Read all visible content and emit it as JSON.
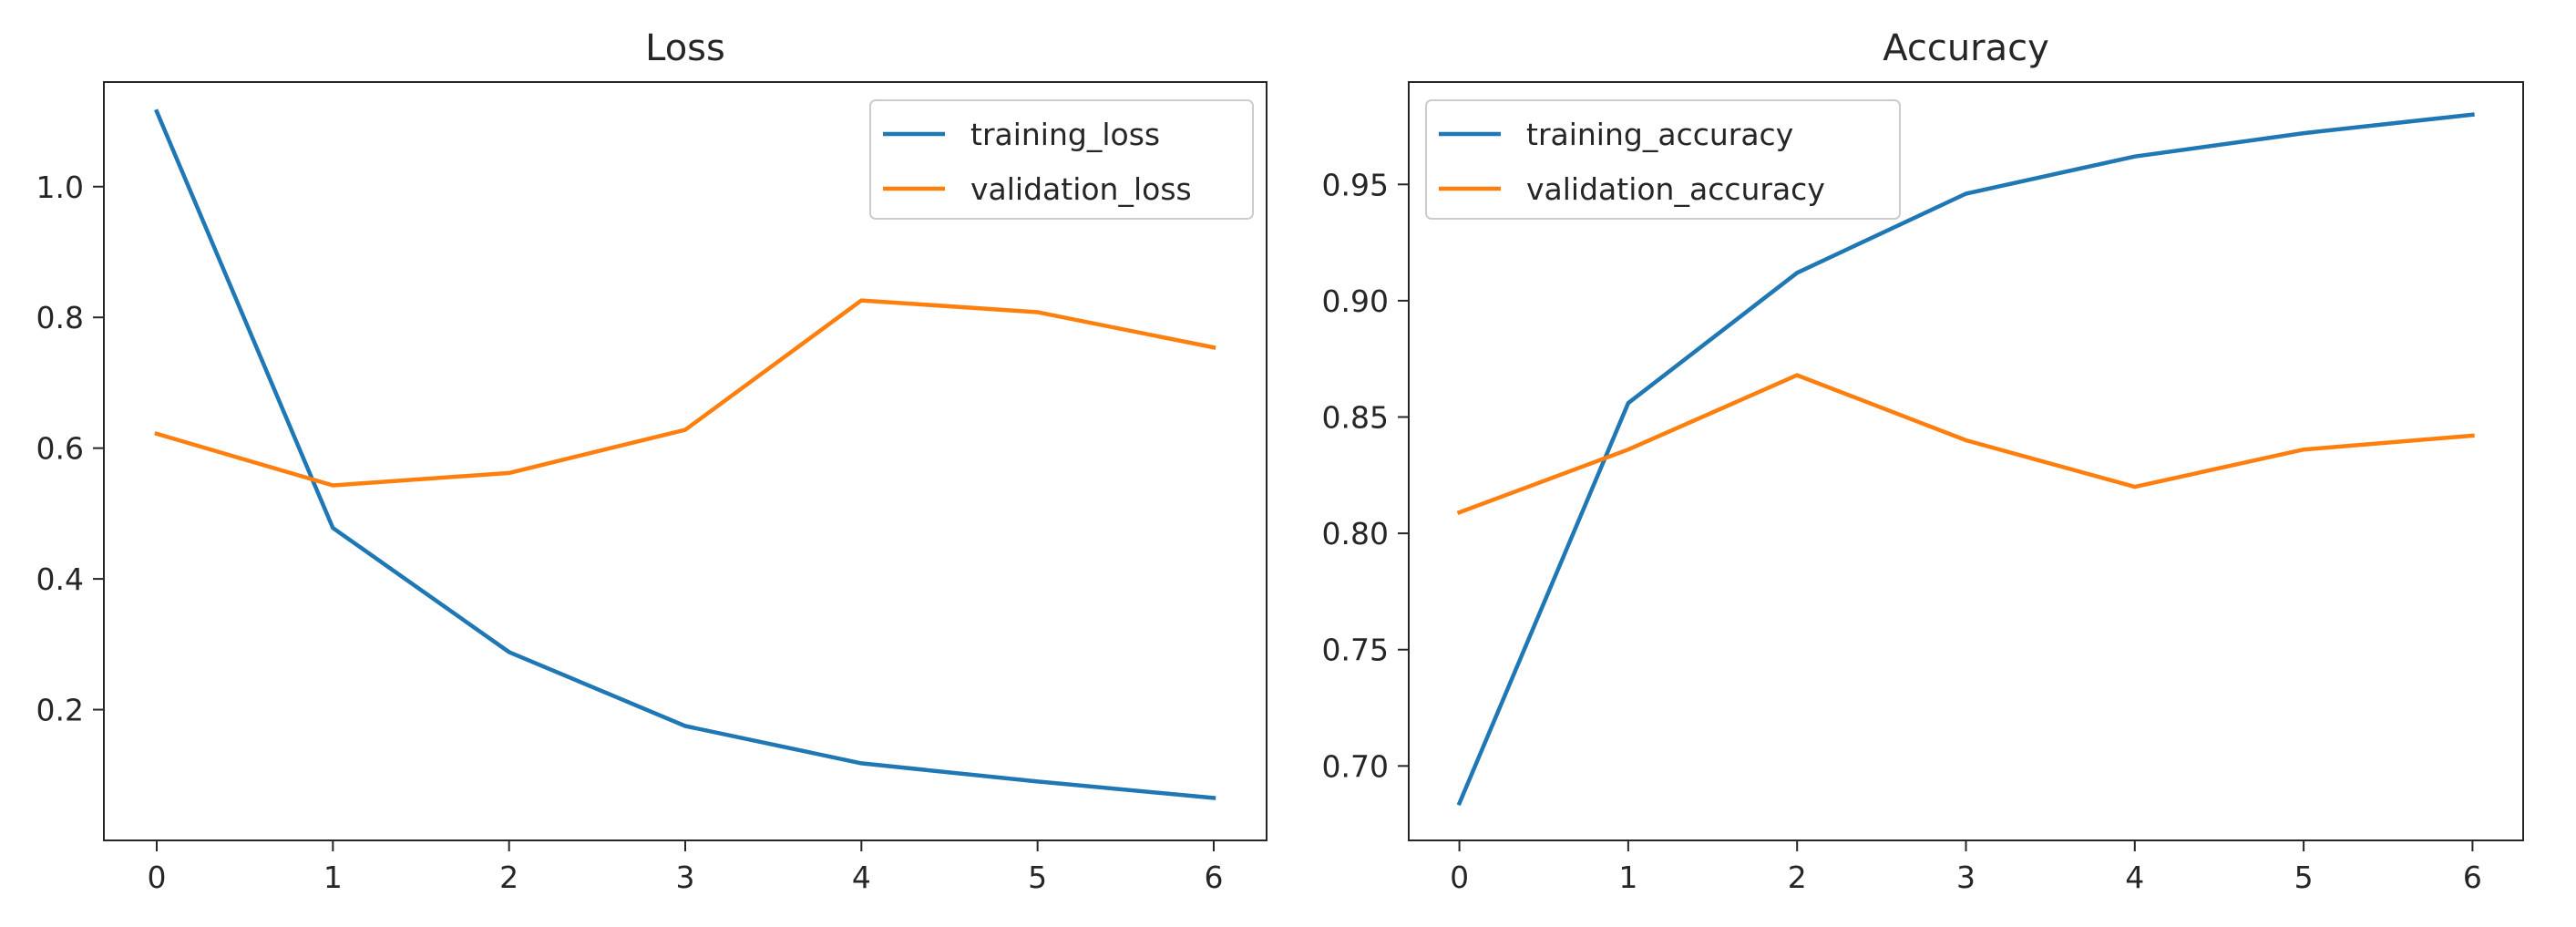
{
  "chart_data": [
    {
      "type": "line",
      "title": "Loss",
      "xlabel": "",
      "ylabel": "",
      "x": [
        0,
        1,
        2,
        3,
        4,
        5,
        6
      ],
      "xlim": [
        -0.3,
        6.3
      ],
      "ylim": [
        0.0,
        1.16
      ],
      "xticks": [
        0,
        1,
        2,
        3,
        4,
        5,
        6
      ],
      "yticks": [
        0.2,
        0.4,
        0.6,
        0.8,
        1.0
      ],
      "ytick_labels": [
        "0.2",
        "0.4",
        "0.6",
        "0.8",
        "1.0"
      ],
      "legend_position": "top-right",
      "grid": false,
      "series": [
        {
          "name": "training_loss",
          "color": "#1f77b4",
          "values": [
            1.115,
            0.478,
            0.288,
            0.175,
            0.118,
            0.09,
            0.065
          ]
        },
        {
          "name": "validation_loss",
          "color": "#ff7f0e",
          "values": [
            0.622,
            0.543,
            0.562,
            0.628,
            0.826,
            0.808,
            0.754
          ]
        }
      ]
    },
    {
      "type": "line",
      "title": "Accuracy",
      "xlabel": "",
      "ylabel": "",
      "x": [
        0,
        1,
        2,
        3,
        4,
        5,
        6
      ],
      "xlim": [
        -0.3,
        6.3
      ],
      "ylim": [
        0.668,
        0.994
      ],
      "xticks": [
        0,
        1,
        2,
        3,
        4,
        5,
        6
      ],
      "yticks": [
        0.7,
        0.75,
        0.8,
        0.85,
        0.9,
        0.95
      ],
      "ytick_labels": [
        "0.70",
        "0.75",
        "0.80",
        "0.85",
        "0.90",
        "0.95"
      ],
      "legend_position": "top-left",
      "grid": false,
      "series": [
        {
          "name": "training_accuracy",
          "color": "#1f77b4",
          "values": [
            0.684,
            0.856,
            0.912,
            0.946,
            0.962,
            0.972,
            0.98
          ]
        },
        {
          "name": "validation_accuracy",
          "color": "#ff7f0e",
          "values": [
            0.809,
            0.836,
            0.868,
            0.84,
            0.82,
            0.836,
            0.842
          ]
        }
      ]
    }
  ]
}
